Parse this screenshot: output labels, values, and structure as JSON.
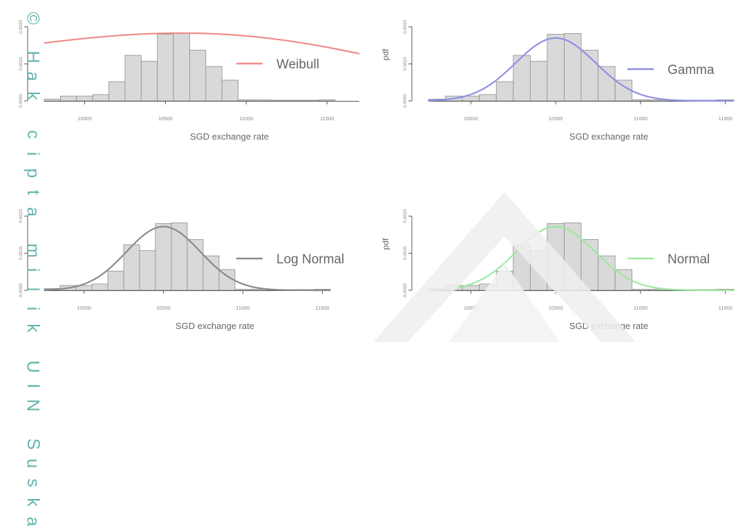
{
  "watermark": {
    "text": "© Hak cipta milik UIN Suska"
  },
  "chart_data": [
    {
      "type": "histogram-with-density",
      "xlabel": "SGD exchange rate",
      "ylabel": "",
      "xlim": [
        9750,
        11700
      ],
      "ylim": [
        0,
        0.0025
      ],
      "xticks": [
        10000,
        10500,
        11000,
        11500
      ],
      "yticks": [
        0.0,
        0.001,
        0.002
      ],
      "ytick_labels": [
        "0.0000",
        "0.0010",
        "0.0020"
      ],
      "bins": {
        "edges": [
          9750,
          9850,
          9950,
          10050,
          10150,
          10250,
          10350,
          10450,
          10550,
          10650,
          10750,
          10850,
          10950,
          11050,
          11150,
          11250,
          11350,
          11450,
          11550
        ],
        "density": [
          5e-05,
          0.00013,
          0.00013,
          0.00017,
          0.00052,
          0.00123,
          0.00107,
          0.0018,
          0.00182,
          0.00137,
          0.00093,
          0.00056,
          3e-05,
          3e-05,
          2e-05,
          2e-05,
          2e-05,
          3e-05
        ]
      },
      "series": [
        {
          "name": "Weibull",
          "color": "#f08a8a",
          "dist": "weibull",
          "peak": 10600,
          "k": 8.0,
          "scale": 1.22,
          "range": [
            9750,
            11700
          ]
        }
      ],
      "legend": {
        "position": "right",
        "entries": [
          "Weibull"
        ]
      },
      "grid": false
    },
    {
      "type": "histogram-with-density",
      "xlabel": "SGD exchange rate",
      "ylabel": "pdf",
      "xlim": [
        9750,
        11550
      ],
      "ylim": [
        0,
        0.0025
      ],
      "xticks": [
        10000,
        10500,
        11000,
        11500
      ],
      "yticks": [
        0.0,
        0.001,
        0.002
      ],
      "ytick_labels": [
        "0.0000",
        "0.0010",
        "0.0020"
      ],
      "bins": {
        "edges": [
          9750,
          9850,
          9950,
          10050,
          10150,
          10250,
          10350,
          10450,
          10550,
          10650,
          10750,
          10850,
          10950,
          11050,
          11150,
          11250,
          11350,
          11450,
          11550
        ],
        "density": [
          5e-05,
          0.00013,
          0.00013,
          0.00017,
          0.00052,
          0.00123,
          0.00107,
          0.0018,
          0.00182,
          0.00137,
          0.00093,
          0.00056,
          3e-05,
          3e-05,
          2e-05,
          2e-05,
          2e-05,
          3e-05
        ]
      },
      "series": [
        {
          "name": "Gamma",
          "color": "#8f8fe6",
          "dist": "normal",
          "mean": 10500,
          "sd": 235,
          "scale": 1.0,
          "range": [
            9750,
            11550
          ]
        }
      ],
      "legend": {
        "position": "right",
        "entries": [
          "Gamma"
        ]
      },
      "grid": false
    },
    {
      "type": "histogram-with-density",
      "xlabel": "SGD exchange rate",
      "ylabel": "",
      "xlim": [
        9750,
        11550
      ],
      "ylim": [
        0,
        0.0025
      ],
      "xticks": [
        10000,
        10500,
        11000,
        11500
      ],
      "yticks": [
        0.0,
        0.001,
        0.002
      ],
      "ytick_labels": [
        "0.0000",
        "0.0010",
        "0.0020"
      ],
      "bins": {
        "edges": [
          9750,
          9850,
          9950,
          10050,
          10150,
          10250,
          10350,
          10450,
          10550,
          10650,
          10750,
          10850,
          10950,
          11050,
          11150,
          11250,
          11350,
          11450,
          11550
        ],
        "density": [
          5e-05,
          0.00013,
          0.00013,
          0.00017,
          0.00052,
          0.00123,
          0.00107,
          0.0018,
          0.00182,
          0.00137,
          0.00093,
          0.00056,
          3e-05,
          3e-05,
          2e-05,
          2e-05,
          2e-05,
          3e-05
        ]
      },
      "series": [
        {
          "name": "Log Normal",
          "color": "#8a8a8a",
          "dist": "normal",
          "mean": 10500,
          "sd": 232,
          "scale": 1.0,
          "range": [
            9750,
            11550
          ]
        }
      ],
      "legend": {
        "position": "right",
        "entries": [
          "Log Normal"
        ]
      },
      "grid": false
    },
    {
      "type": "histogram-with-density",
      "xlabel": "SGD exchange rate",
      "ylabel": "pdf",
      "xlim": [
        9750,
        11550
      ],
      "ylim": [
        0,
        0.0025
      ],
      "xticks": [
        10000,
        10500,
        11000,
        11500
      ],
      "yticks": [
        0.0,
        0.001,
        0.002
      ],
      "ytick_labels": [
        "0.0000",
        "0.0010",
        "0.0020"
      ],
      "bins": {
        "edges": [
          9750,
          9850,
          9950,
          10050,
          10150,
          10250,
          10350,
          10450,
          10550,
          10650,
          10750,
          10850,
          10950,
          11050,
          11150,
          11250,
          11350,
          11450,
          11550
        ],
        "density": [
          5e-05,
          0.00013,
          0.00013,
          0.00017,
          0.00052,
          0.00123,
          0.00107,
          0.0018,
          0.00182,
          0.00137,
          0.00093,
          0.00056,
          3e-05,
          3e-05,
          2e-05,
          2e-05,
          2e-05,
          3e-05
        ]
      },
      "series": [
        {
          "name": "Normal",
          "color": "#9ee89e",
          "dist": "normal",
          "mean": 10500,
          "sd": 232,
          "scale": 1.0,
          "range": [
            9750,
            11550
          ]
        }
      ],
      "legend": {
        "position": "right",
        "entries": [
          "Normal"
        ]
      },
      "grid": false
    }
  ]
}
